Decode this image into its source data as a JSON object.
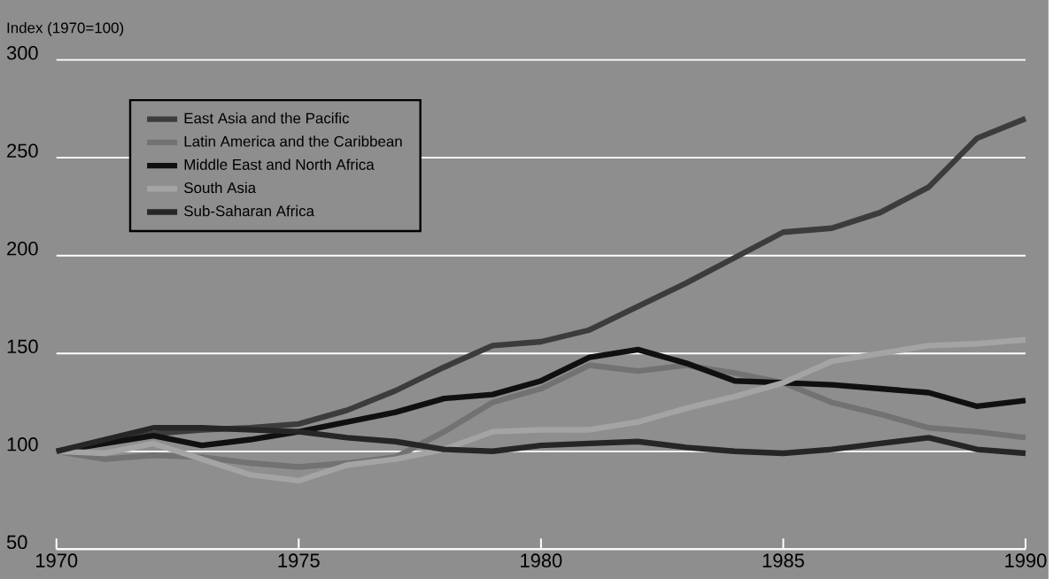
{
  "chart_data": {
    "type": "line",
    "ylabel": "Index (1970=100)",
    "x": [
      1970,
      1971,
      1972,
      1973,
      1974,
      1975,
      1976,
      1977,
      1978,
      1979,
      1980,
      1981,
      1982,
      1983,
      1984,
      1985,
      1986,
      1987,
      1988,
      1989,
      1990
    ],
    "series": [
      {
        "name": "East Asia and the Pacific",
        "color": "#3c3c3c",
        "values": [
          100,
          105,
          109,
          111,
          112,
          114,
          121,
          131,
          143,
          154,
          156,
          162,
          174,
          186,
          199,
          212,
          214,
          222,
          235,
          260,
          270
        ]
      },
      {
        "name": "Latin America and the Caribbean",
        "color": "#727272",
        "values": [
          100,
          96,
          98,
          97,
          94,
          92,
          94,
          97,
          110,
          125,
          132,
          144,
          141,
          144,
          140,
          135,
          125,
          119,
          112,
          110,
          107
        ]
      },
      {
        "name": "Middle East and North Africa",
        "color": "#101010",
        "values": [
          100,
          104,
          108,
          103,
          106,
          110,
          115,
          120,
          127,
          129,
          136,
          148,
          152,
          145,
          136,
          135,
          134,
          132,
          130,
          123,
          126
        ]
      },
      {
        "name": "South Asia",
        "color": "#a4a4a4",
        "values": [
          100,
          99,
          104,
          96,
          88,
          85,
          93,
          96,
          101,
          110,
          111,
          111,
          115,
          122,
          128,
          135,
          146,
          150,
          154,
          155,
          157
        ]
      },
      {
        "name": "Sub-Saharan Africa",
        "color": "#262626",
        "values": [
          100,
          106,
          112,
          112,
          111,
          110,
          107,
          105,
          101,
          100,
          103,
          104,
          105,
          102,
          100,
          99,
          101,
          104,
          107,
          101,
          99
        ]
      }
    ],
    "xlim": [
      1970,
      1990
    ],
    "ylim": [
      50,
      300
    ],
    "xticks": [
      1970,
      1975,
      1980,
      1985,
      1990
    ],
    "yticks": [
      50,
      100,
      150,
      200,
      250,
      300
    ],
    "grid": "y",
    "legend": "top left",
    "line_style": "solid",
    "marker": "none"
  }
}
